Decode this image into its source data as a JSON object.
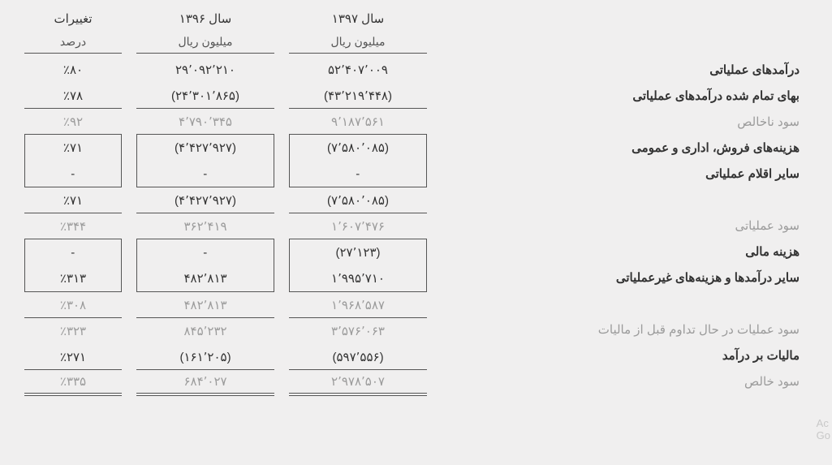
{
  "headers": {
    "y1397": "سال ۱۳۹۷",
    "y1396": "سال ۱۳۹۶",
    "changes": "تغییرات",
    "unit_rial": "میلیون ریال",
    "unit_pct": "درصد"
  },
  "labels": {
    "op_income": "درآمدهای عملیاتی",
    "cogs": "بهای تمام شده درآمدهای عملیاتی",
    "gross_profit": "سود ناخالص",
    "sga": "هزینه‌های فروش، اداری و عمومی",
    "other_op": "سایر اقلام عملیاتی",
    "op_profit": "سود عملیاتی",
    "fin_cost": "هزینه مالی",
    "nonop": "سایر درآمدها و هزینه‌های غیرعملیاتی",
    "pbt": "سود عملیات در حال تداوم قبل از مالیات",
    "tax": "مالیات بر درآمد",
    "net": "سود خالص"
  },
  "y1397": {
    "op_income": "۵۲٬۴۰۷٬۰۰۹",
    "cogs": "(۴۳٬۲۱۹٬۴۴۸)",
    "gross_profit": "۹٬۱۸۷٬۵۶۱",
    "sga": "(۷٬۵۸۰٬۰۸۵)",
    "other_op": "-",
    "sub1": "(۷٬۵۸۰٬۰۸۵)",
    "op_profit": "۱٬۶۰۷٬۴۷۶",
    "fin_cost": "(۲۷٬۱۲۳)",
    "nonop": "۱٬۹۹۵٬۷۱۰",
    "sub2": "۱٬۹۶۸٬۵۸۷",
    "pbt": "۳٬۵۷۶٬۰۶۳",
    "tax": "(۵۹۷٬۵۵۶)",
    "net": "۲٬۹۷۸٬۵۰۷"
  },
  "y1396": {
    "op_income": "۲۹٬۰۹۲٬۲۱۰",
    "cogs": "(۲۴٬۳۰۱٬۸۶۵)",
    "gross_profit": "۴٬۷۹۰٬۳۴۵",
    "sga": "(۴٬۴۲۷٬۹۲۷)",
    "other_op": "-",
    "sub1": "(۴٬۴۲۷٬۹۲۷)",
    "op_profit": "۳۶۲٬۴۱۹",
    "fin_cost": "-",
    "nonop": "۴۸۲٬۸۱۳",
    "sub2": "۴۸۲٬۸۱۳",
    "pbt": "۸۴۵٬۲۳۲",
    "tax": "(۱۶۱٬۲۰۵)",
    "net": "۶۸۴٬۰۲۷"
  },
  "pct": {
    "op_income": "٪۸۰",
    "cogs": "٪۷۸",
    "gross_profit": "٪۹۲",
    "sga": "٪۷۱",
    "other_op": "-",
    "sub1": "٪۷۱",
    "op_profit": "٪۳۴۴",
    "fin_cost": "-",
    "nonop": "٪۳۱۳",
    "sub2": "٪۳۰۸",
    "pbt": "٪۳۲۳",
    "tax": "٪۲۷۱",
    "net": "٪۳۳۵"
  },
  "watermark": {
    "l1": "Ac",
    "l2": "Go"
  }
}
